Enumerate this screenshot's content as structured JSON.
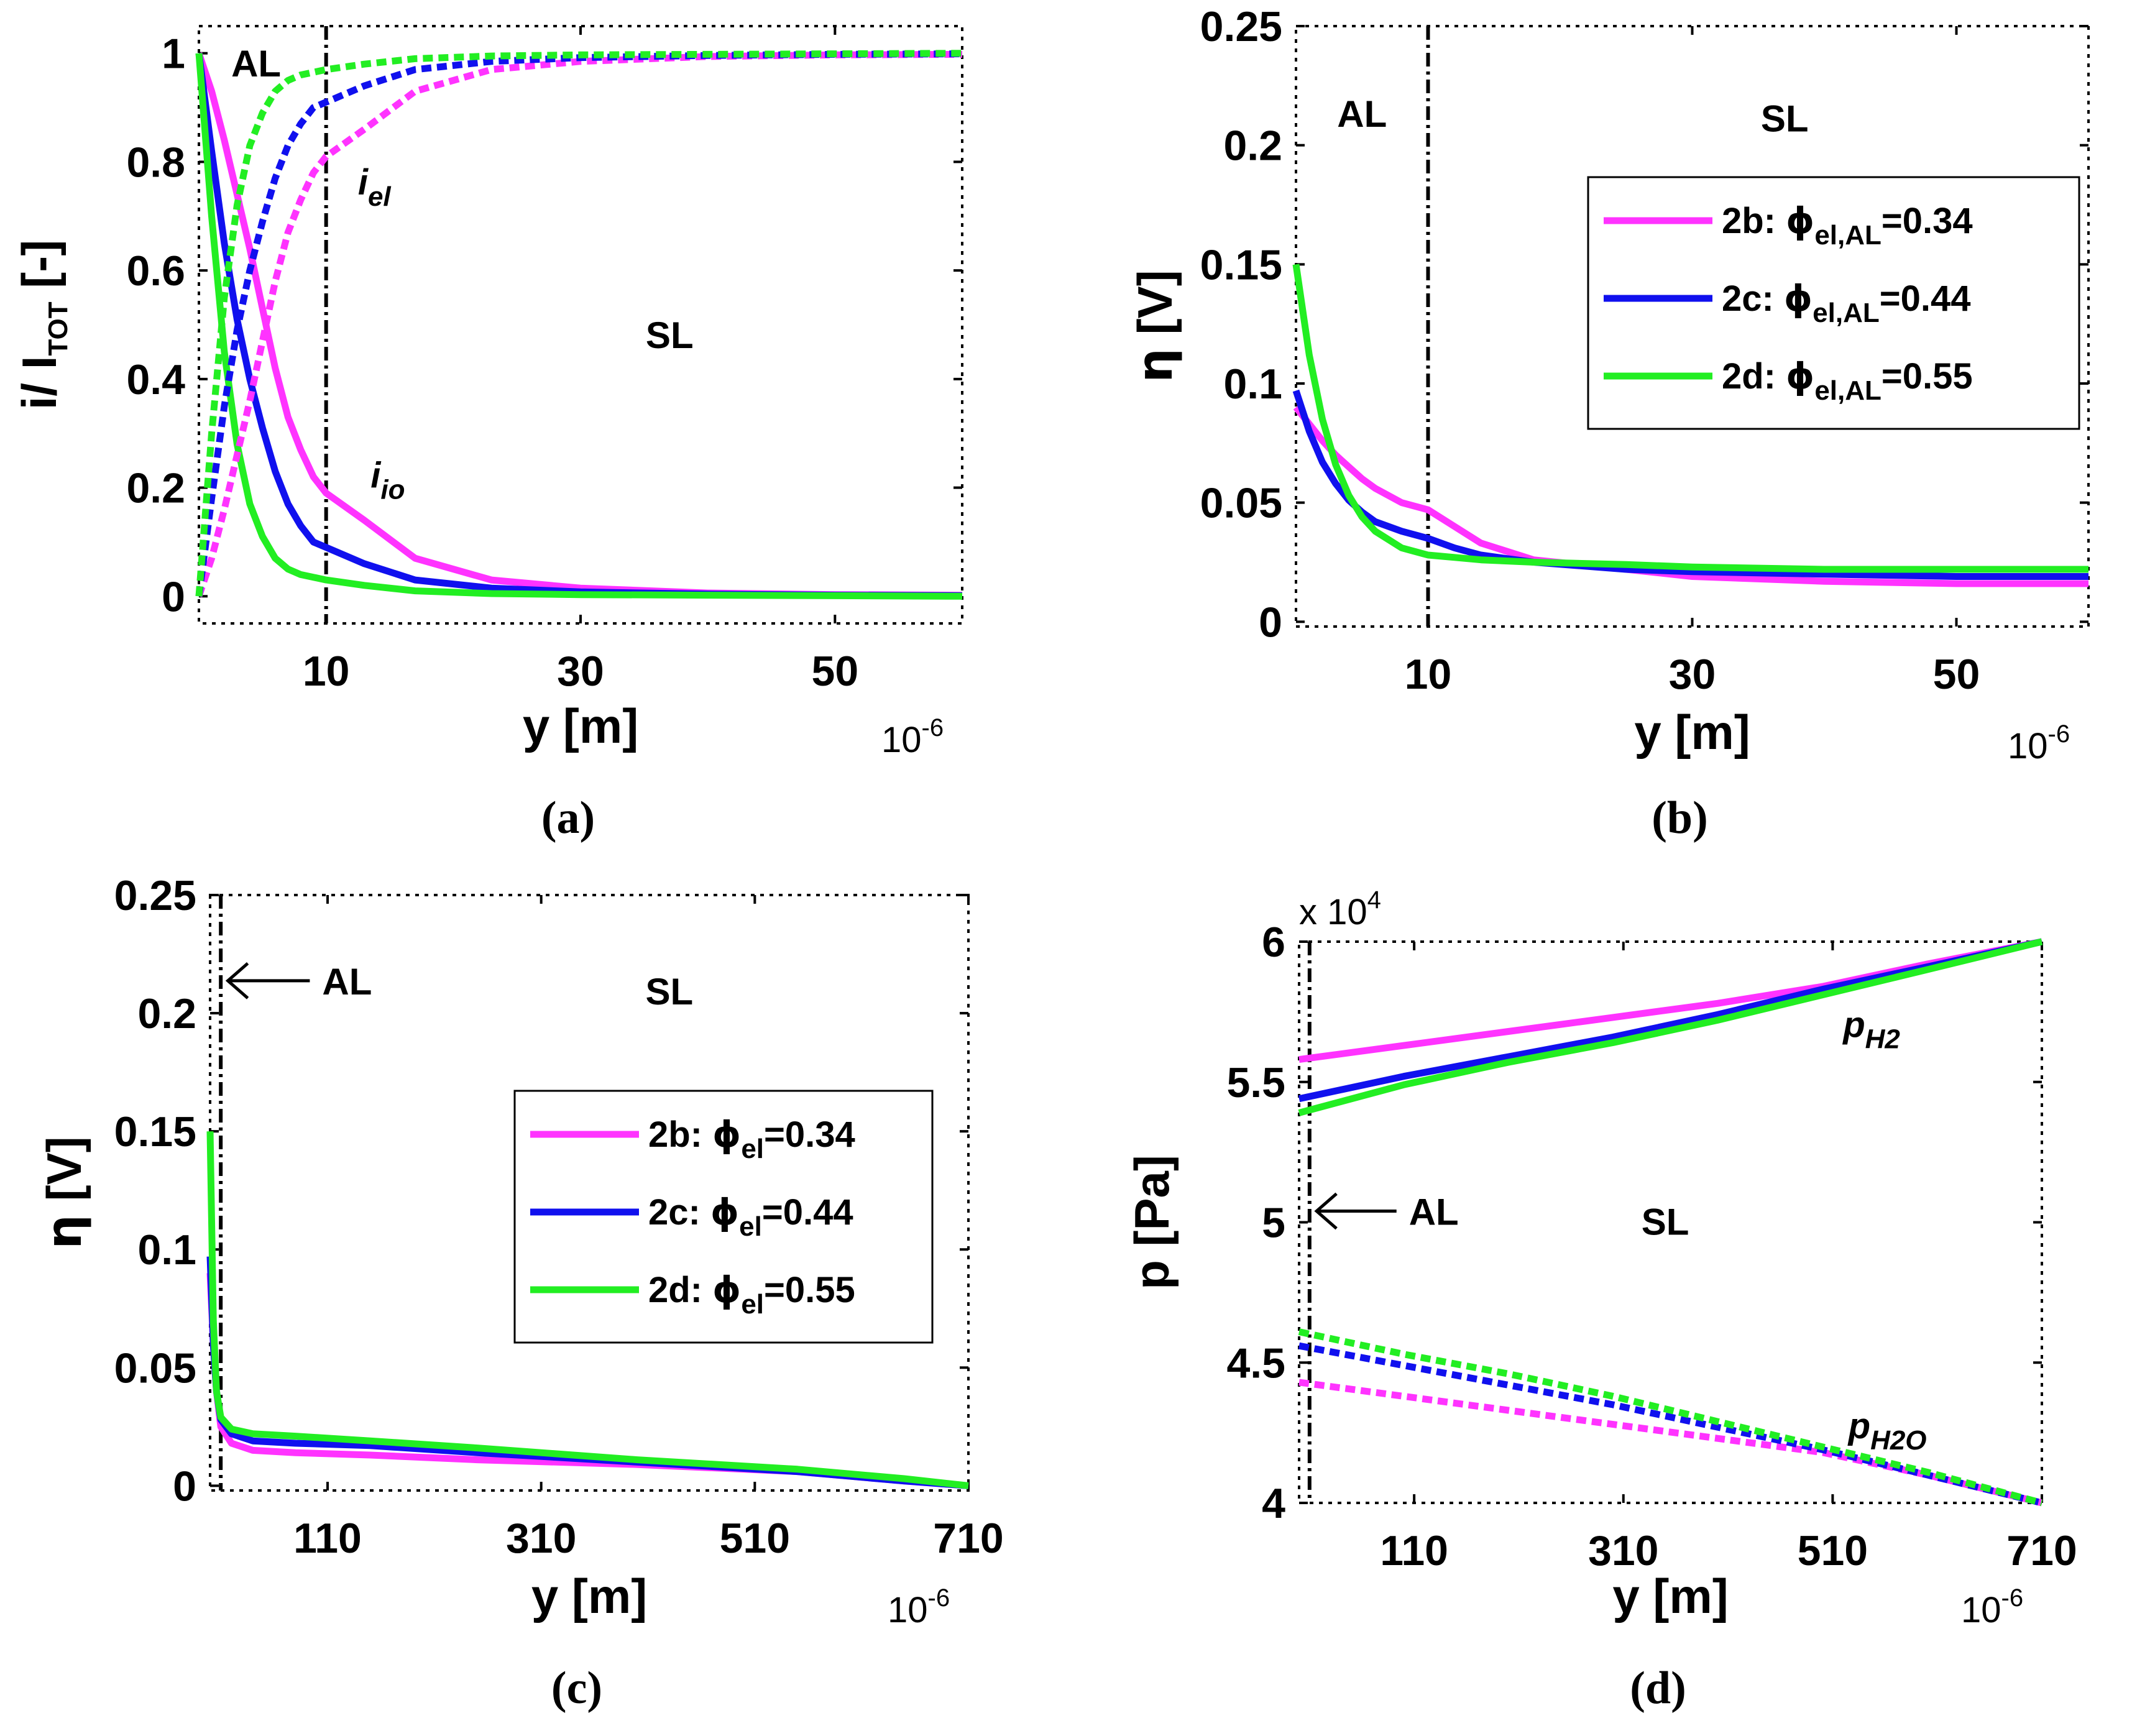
{
  "colors": {
    "magenta": "#ff33ff",
    "blue": "#1010ee",
    "green": "#22ee22",
    "axis": "#000000"
  },
  "chart_data": [
    {
      "panel": "a",
      "panel_label": "(a)",
      "type": "line",
      "xlabel": "y [m]",
      "x_multiplier": "10-6",
      "ylabel": "i/ I_TOT [-]",
      "xlim": [
        0,
        60
      ],
      "ylim": [
        -0.05,
        1.05
      ],
      "x_ticks": [
        10,
        30,
        50
      ],
      "y_ticks": [
        0,
        0.2,
        0.4,
        0.6,
        0.8,
        1
      ],
      "y_tick_labels": [
        "0",
        "0.2",
        "0.4",
        "0.6",
        "0.8",
        "1"
      ],
      "divider_x": 10,
      "regions": [
        {
          "text": "AL",
          "x": 4.5,
          "y": 0.98
        },
        {
          "text": "SL",
          "x": 37,
          "y": 0.48
        }
      ],
      "annotations": [
        {
          "main": "i",
          "sub": "el",
          "x": 12.5,
          "y": 0.74
        },
        {
          "main": "i",
          "sub": "io",
          "x": 13.5,
          "y": 0.2
        }
      ],
      "legend": null,
      "series": [
        {
          "name": "2b i_io",
          "color": "magenta",
          "dash": false,
          "x": [
            0,
            1,
            2,
            3,
            4,
            5,
            6,
            7,
            8,
            9,
            10,
            13,
            17,
            23,
            30,
            40,
            50,
            60
          ],
          "y": [
            1,
            0.93,
            0.84,
            0.74,
            0.64,
            0.53,
            0.42,
            0.33,
            0.27,
            0.22,
            0.19,
            0.14,
            0.07,
            0.03,
            0.015,
            0.006,
            0.003,
            0.002
          ]
        },
        {
          "name": "2c i_io",
          "color": "blue",
          "dash": false,
          "x": [
            0,
            1,
            2,
            3,
            4,
            5,
            6,
            7,
            8,
            9,
            10,
            13,
            17,
            23,
            30,
            40,
            50,
            60
          ],
          "y": [
            1,
            0.82,
            0.65,
            0.51,
            0.4,
            0.31,
            0.23,
            0.17,
            0.13,
            0.1,
            0.09,
            0.06,
            0.03,
            0.015,
            0.008,
            0.004,
            0.002,
            0.001
          ]
        },
        {
          "name": "2d i_io",
          "color": "green",
          "dash": false,
          "x": [
            0,
            1,
            2,
            3,
            4,
            5,
            6,
            7,
            8,
            9,
            10,
            13,
            17,
            23,
            30,
            40,
            50,
            60
          ],
          "y": [
            1,
            0.7,
            0.45,
            0.28,
            0.17,
            0.11,
            0.07,
            0.05,
            0.04,
            0.035,
            0.03,
            0.02,
            0.01,
            0.005,
            0.003,
            0.002,
            0.001,
            0
          ]
        },
        {
          "name": "2b i_el",
          "color": "magenta",
          "dash": true,
          "x": [
            0,
            1,
            2,
            3,
            4,
            5,
            6,
            7,
            8,
            9,
            10,
            13,
            17,
            23,
            30,
            40,
            50,
            60
          ],
          "y": [
            0,
            0.07,
            0.16,
            0.26,
            0.36,
            0.47,
            0.58,
            0.67,
            0.73,
            0.78,
            0.81,
            0.86,
            0.93,
            0.97,
            0.985,
            0.994,
            0.997,
            0.998
          ]
        },
        {
          "name": "2c i_el",
          "color": "blue",
          "dash": true,
          "x": [
            0,
            1,
            2,
            3,
            4,
            5,
            6,
            7,
            8,
            9,
            10,
            13,
            17,
            23,
            30,
            40,
            50,
            60
          ],
          "y": [
            0,
            0.18,
            0.35,
            0.49,
            0.6,
            0.69,
            0.77,
            0.83,
            0.87,
            0.9,
            0.91,
            0.94,
            0.97,
            0.985,
            0.992,
            0.996,
            0.998,
            0.999
          ]
        },
        {
          "name": "2d i_el",
          "color": "green",
          "dash": true,
          "x": [
            0,
            1,
            2,
            3,
            4,
            5,
            6,
            7,
            8,
            9,
            10,
            13,
            17,
            23,
            30,
            40,
            50,
            60
          ],
          "y": [
            0,
            0.3,
            0.55,
            0.72,
            0.83,
            0.89,
            0.93,
            0.95,
            0.96,
            0.965,
            0.97,
            0.98,
            0.99,
            0.995,
            0.997,
            0.998,
            0.999,
            1
          ]
        }
      ]
    },
    {
      "panel": "b",
      "panel_label": "(b)",
      "type": "line",
      "xlabel": "y [m]",
      "x_multiplier": "10-6",
      "ylabel": "η [V]",
      "xlim": [
        0,
        60
      ],
      "ylim": [
        -0.002,
        0.25
      ],
      "x_ticks": [
        10,
        30,
        50
      ],
      "y_ticks": [
        0,
        0.05,
        0.1,
        0.15,
        0.2,
        0.25
      ],
      "y_tick_labels": [
        "0",
        "0.05",
        "0.1",
        "0.15",
        "0.2",
        "0.25"
      ],
      "divider_x": 10,
      "regions": [
        {
          "text": "AL",
          "x": 5,
          "y": 0.213
        },
        {
          "text": "SL",
          "x": 37,
          "y": 0.211
        }
      ],
      "annotations": [],
      "legend": {
        "position": "top-right",
        "entries": [
          {
            "prefix": "2b: ",
            "main": "ϕ",
            "sub": "el,AL",
            "suffix": "=0.34",
            "color": "magenta"
          },
          {
            "prefix": "2c: ",
            "main": "ϕ",
            "sub": "el,AL",
            "suffix": "=0.44",
            "color": "blue"
          },
          {
            "prefix": "2d: ",
            "main": "ϕ",
            "sub": "el,AL",
            "suffix": "=0.55",
            "color": "green"
          }
        ]
      },
      "series": [
        {
          "name": "2b: ϕel,AL=0.34",
          "color": "magenta",
          "dash": false,
          "x": [
            0,
            1,
            2,
            3,
            4,
            5,
            6,
            8,
            10,
            12,
            14,
            18,
            25,
            30,
            40,
            50,
            60
          ],
          "y": [
            0.09,
            0.083,
            0.076,
            0.07,
            0.065,
            0.06,
            0.056,
            0.05,
            0.047,
            0.04,
            0.033,
            0.026,
            0.022,
            0.019,
            0.017,
            0.016,
            0.016
          ]
        },
        {
          "name": "2c: ϕel,AL=0.44",
          "color": "blue",
          "dash": false,
          "x": [
            0,
            1,
            2,
            3,
            4,
            5,
            6,
            8,
            10,
            12,
            14,
            18,
            25,
            30,
            40,
            50,
            60
          ],
          "y": [
            0.097,
            0.08,
            0.067,
            0.058,
            0.051,
            0.046,
            0.042,
            0.038,
            0.035,
            0.031,
            0.028,
            0.025,
            0.022,
            0.021,
            0.02,
            0.019,
            0.019
          ]
        },
        {
          "name": "2d: ϕel,AL=0.55",
          "color": "green",
          "dash": false,
          "x": [
            0,
            1,
            2,
            3,
            4,
            5,
            6,
            8,
            10,
            12,
            14,
            18,
            25,
            30,
            40,
            50,
            60
          ],
          "y": [
            0.15,
            0.112,
            0.085,
            0.066,
            0.053,
            0.044,
            0.038,
            0.031,
            0.028,
            0.027,
            0.026,
            0.025,
            0.024,
            0.023,
            0.022,
            0.022,
            0.022
          ]
        }
      ]
    },
    {
      "panel": "c",
      "panel_label": "(c)",
      "type": "line",
      "xlabel": "y [m]",
      "x_multiplier": "10-6",
      "ylabel": "η [V]",
      "xlim": [
        0,
        710
      ],
      "ylim": [
        -0.002,
        0.25
      ],
      "x_ticks": [
        110,
        310,
        510,
        710
      ],
      "y_ticks": [
        0,
        0.05,
        0.1,
        0.15,
        0.2,
        0.25
      ],
      "y_tick_labels": [
        "0",
        "0.05",
        "0.1",
        "0.15",
        "0.2",
        "0.25"
      ],
      "divider_x": 10,
      "regions": [
        {
          "text": "AL",
          "x": 105,
          "y": 0.209,
          "arrow_to_x": 12
        },
        {
          "text": "SL",
          "x": 430,
          "y": 0.209
        }
      ],
      "annotations": [],
      "legend": {
        "position": "center-right",
        "entries": [
          {
            "prefix": "2b: ",
            "main": "ϕ",
            "sub": "el",
            "suffix": "=0.34",
            "color": "magenta"
          },
          {
            "prefix": "2c: ",
            "main": "ϕ",
            "sub": "el",
            "suffix": "=0.44",
            "color": "blue"
          },
          {
            "prefix": "2d: ",
            "main": "ϕ",
            "sub": "el",
            "suffix": "=0.55",
            "color": "green"
          }
        ]
      },
      "series": [
        {
          "name": "2b: ϕel=0.34",
          "color": "magenta",
          "dash": false,
          "x": [
            0,
            3,
            6,
            10,
            20,
            40,
            80,
            150,
            250,
            400,
            550,
            650,
            710
          ],
          "y": [
            0.09,
            0.06,
            0.04,
            0.025,
            0.018,
            0.015,
            0.014,
            0.013,
            0.011,
            0.009,
            0.006,
            0.002,
            0
          ]
        },
        {
          "name": "2c: ϕel=0.44",
          "color": "blue",
          "dash": false,
          "x": [
            0,
            3,
            6,
            10,
            20,
            40,
            80,
            150,
            250,
            400,
            550,
            650,
            710
          ],
          "y": [
            0.097,
            0.06,
            0.04,
            0.028,
            0.022,
            0.019,
            0.018,
            0.017,
            0.014,
            0.01,
            0.006,
            0.002,
            0
          ]
        },
        {
          "name": "2d: ϕel=0.55",
          "color": "green",
          "dash": false,
          "x": [
            0,
            3,
            6,
            10,
            20,
            40,
            80,
            150,
            250,
            400,
            550,
            650,
            710
          ],
          "y": [
            0.15,
            0.07,
            0.04,
            0.029,
            0.024,
            0.022,
            0.021,
            0.019,
            0.016,
            0.011,
            0.007,
            0.003,
            0
          ]
        }
      ]
    },
    {
      "panel": "d",
      "panel_label": "(d)",
      "type": "line",
      "xlabel": "y [m]",
      "x_multiplier": "10-6",
      "y_multiplier": "x 104",
      "ylabel": "p [Pa]",
      "xlim": [
        0,
        710
      ],
      "ylim": [
        40000,
        60000
      ],
      "x_ticks": [
        110,
        310,
        510,
        710
      ],
      "y_ticks": [
        40000,
        45000,
        50000,
        55000,
        60000
      ],
      "y_tick_labels": [
        "4",
        "4.5",
        "5",
        "5.5",
        "6"
      ],
      "divider_x": 10,
      "regions": [
        {
          "text": "AL",
          "x": 105,
          "y": 50000,
          "arrow_to_x": 12
        },
        {
          "text": "SL",
          "x": 350,
          "y": 50000
        }
      ],
      "annotations": [
        {
          "main": "p",
          "sub": "H2",
          "x": 520,
          "y": 56600
        },
        {
          "main": "p",
          "sub": "H2O",
          "x": 525,
          "y": 42300
        }
      ],
      "legend": null,
      "series": [
        {
          "name": "2b pH2",
          "color": "magenta",
          "dash": false,
          "x": [
            0,
            100,
            200,
            300,
            400,
            500,
            600,
            710
          ],
          "y": [
            55800,
            56300,
            56800,
            57300,
            57800,
            58400,
            59200,
            60000
          ]
        },
        {
          "name": "2c pH2",
          "color": "blue",
          "dash": false,
          "x": [
            0,
            100,
            200,
            300,
            400,
            500,
            600,
            710
          ],
          "y": [
            54400,
            55200,
            55900,
            56600,
            57400,
            58300,
            59100,
            60000
          ]
        },
        {
          "name": "2d pH2",
          "color": "green",
          "dash": false,
          "x": [
            0,
            100,
            200,
            300,
            400,
            500,
            600,
            710
          ],
          "y": [
            53900,
            54900,
            55700,
            56400,
            57200,
            58100,
            59000,
            60000
          ]
        },
        {
          "name": "2b pH2O",
          "color": "magenta",
          "dash": true,
          "x": [
            0,
            100,
            200,
            300,
            400,
            500,
            600,
            710
          ],
          "y": [
            44300,
            43800,
            43300,
            42800,
            42300,
            41800,
            41000,
            40000
          ]
        },
        {
          "name": "2c pH2O",
          "color": "blue",
          "dash": true,
          "x": [
            0,
            100,
            200,
            300,
            400,
            500,
            600,
            710
          ],
          "y": [
            45600,
            44900,
            44200,
            43500,
            42700,
            41900,
            41000,
            40000
          ]
        },
        {
          "name": "2d pH2O",
          "color": "green",
          "dash": true,
          "x": [
            0,
            100,
            200,
            300,
            400,
            500,
            600,
            710
          ],
          "y": [
            46100,
            45300,
            44600,
            43800,
            42900,
            42000,
            41100,
            40000
          ]
        }
      ]
    }
  ]
}
